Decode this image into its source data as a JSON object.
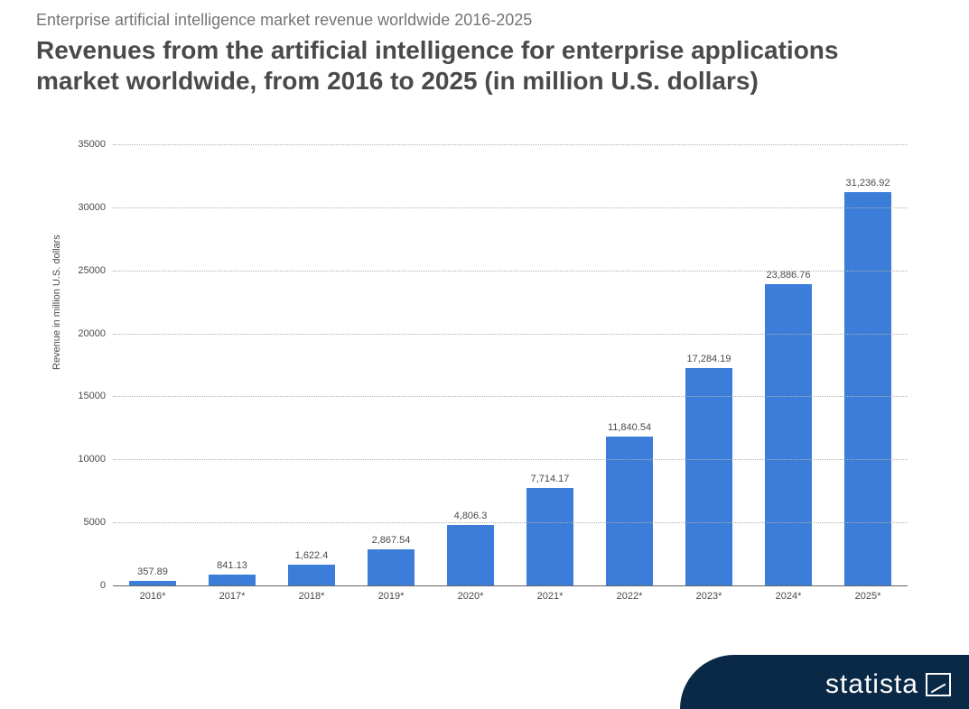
{
  "header": {
    "subtitle": "Enterprise artificial intelligence market revenue worldwide 2016-2025",
    "title": "Revenues from the artificial intelligence for enterprise applications market worldwide, from 2016 to 2025 (in million U.S. dollars)"
  },
  "chart": {
    "type": "bar",
    "y_axis_label": "Revenue in million U.S. dollars",
    "ylim": [
      0,
      35000
    ],
    "ytick_step": 5000,
    "y_ticks": [
      "0",
      "5000",
      "10000",
      "15000",
      "20000",
      "25000",
      "30000",
      "35000"
    ],
    "categories": [
      "2016*",
      "2017*",
      "2018*",
      "2019*",
      "2020*",
      "2021*",
      "2022*",
      "2023*",
      "2024*",
      "2025*"
    ],
    "values": [
      357.89,
      841.13,
      1622.4,
      2867.54,
      4806.3,
      7714.17,
      11840.54,
      17284.19,
      23886.76,
      31236.92
    ],
    "value_labels": [
      "357.89",
      "841.13",
      "1,622.4",
      "2,867.54",
      "4,806.3",
      "7,714.17",
      "11,840.54",
      "17,284.19",
      "23,886.76",
      "31,236.92"
    ],
    "bar_color": "#3b7dd8",
    "background_color": "#ffffff",
    "grid_color": "#b0b0b0",
    "axis_text_color": "#4a4a4a",
    "bar_width_ratio": 0.58,
    "label_fontsize": 11,
    "title_fontsize": 28,
    "subtitle_fontsize": 18
  },
  "footer": {
    "logo_text": "statista",
    "logo_bg": "#0a2947",
    "logo_color": "#ffffff"
  }
}
